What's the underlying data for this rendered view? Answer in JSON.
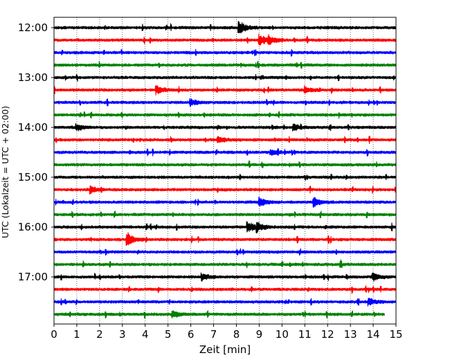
{
  "chart_data": {
    "type": "line",
    "title": "",
    "xlabel": "Zeit  [min]",
    "ylabel": "UTC (Lokalzeit = UTC + 02:00)",
    "xlim": [
      0,
      15
    ],
    "x_ticks": [
      0,
      1,
      2,
      3,
      4,
      5,
      6,
      7,
      8,
      9,
      10,
      11,
      12,
      13,
      14,
      15
    ],
    "x_tick_labels": [
      "0",
      "1",
      "2",
      "3",
      "4",
      "5",
      "6",
      "7",
      "8",
      "9",
      "10",
      "11",
      "12",
      "13",
      "14",
      "15"
    ],
    "y_tick_labels": [
      "12:00",
      "13:00",
      "14:00",
      "15:00",
      "16:00",
      "17:00"
    ],
    "grid": "vertical dotted at each minute",
    "traces_per_hour": 4,
    "trace_minutes": 15,
    "start_time": "12:00",
    "color_cycle": [
      "#000000",
      "#ff0000",
      "#0000ff",
      "#008000"
    ],
    "series": [
      {
        "start": "12:00",
        "color": "#000000",
        "events": [
          [
            8.1,
            2.2
          ]
        ]
      },
      {
        "start": "12:15",
        "color": "#ff0000",
        "events": [
          [
            9.0,
            1.8
          ],
          [
            9.4,
            1.2
          ]
        ]
      },
      {
        "start": "12:30",
        "color": "#0000ff",
        "events": []
      },
      {
        "start": "12:45",
        "color": "#008000",
        "events": []
      },
      {
        "start": "13:00",
        "color": "#000000",
        "events": []
      },
      {
        "start": "13:15",
        "color": "#ff0000",
        "events": [
          [
            4.5,
            1.2
          ],
          [
            11.0,
            1.0
          ]
        ]
      },
      {
        "start": "13:30",
        "color": "#0000ff",
        "events": [
          [
            6.0,
            1.0
          ]
        ]
      },
      {
        "start": "13:45",
        "color": "#008000",
        "events": []
      },
      {
        "start": "14:00",
        "color": "#000000",
        "events": [
          [
            1.0,
            1.0
          ],
          [
            10.5,
            1.0
          ]
        ]
      },
      {
        "start": "14:15",
        "color": "#ff0000",
        "events": [
          [
            7.2,
            0.8
          ]
        ]
      },
      {
        "start": "14:30",
        "color": "#0000ff",
        "events": [
          [
            9.5,
            0.8
          ]
        ]
      },
      {
        "start": "14:45",
        "color": "#008000",
        "events": []
      },
      {
        "start": "15:00",
        "color": "#000000",
        "events": []
      },
      {
        "start": "15:15",
        "color": "#ff0000",
        "events": [
          [
            1.6,
            1.0
          ]
        ]
      },
      {
        "start": "15:30",
        "color": "#0000ff",
        "events": [
          [
            9.0,
            1.4
          ],
          [
            11.4,
            1.2
          ]
        ]
      },
      {
        "start": "15:45",
        "color": "#008000",
        "events": []
      },
      {
        "start": "16:00",
        "color": "#000000",
        "events": [
          [
            8.5,
            1.6
          ],
          [
            8.9,
            1.2
          ]
        ]
      },
      {
        "start": "16:15",
        "color": "#ff0000",
        "events": [
          [
            3.2,
            2.0
          ]
        ]
      },
      {
        "start": "16:30",
        "color": "#0000ff",
        "events": []
      },
      {
        "start": "16:45",
        "color": "#008000",
        "events": []
      },
      {
        "start": "17:00",
        "color": "#000000",
        "events": [
          [
            6.5,
            1.0
          ],
          [
            14.0,
            1.0
          ]
        ]
      },
      {
        "start": "17:15",
        "color": "#ff0000",
        "events": []
      },
      {
        "start": "17:30",
        "color": "#0000ff",
        "events": [
          [
            13.8,
            1.0
          ]
        ]
      },
      {
        "start": "17:45",
        "color": "#008000",
        "events": [
          [
            5.2,
            1.0
          ]
        ],
        "end_minute": 14.5
      }
    ]
  }
}
